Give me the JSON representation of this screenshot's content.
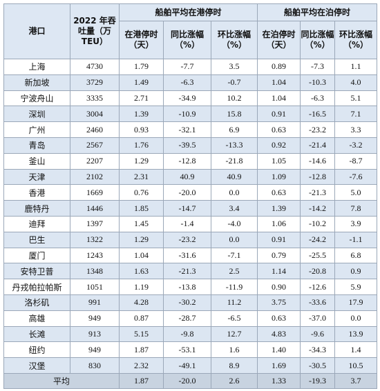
{
  "table": {
    "header": {
      "port": "港口",
      "throughput": "2022 年吞吐量（万 TEU）",
      "groups": [
        "船舶平均在港停时",
        "船舶平均在泊停时"
      ],
      "columns": [
        "在港停时（天）",
        "同比涨幅（%）",
        "环比涨幅（%）",
        "在泊停时（天）",
        "同比涨幅（%）",
        "环比涨幅（%）"
      ]
    },
    "rows": [
      [
        "上海",
        "4730",
        "1.79",
        "-7.7",
        "3.5",
        "0.89",
        "-7.3",
        "1.1"
      ],
      [
        "新加坡",
        "3729",
        "1.49",
        "-6.3",
        "-0.7",
        "1.04",
        "-10.3",
        "4.0"
      ],
      [
        "宁波舟山",
        "3335",
        "2.71",
        "-34.9",
        "10.2",
        "1.04",
        "-6.3",
        "5.1"
      ],
      [
        "深圳",
        "3004",
        "1.39",
        "-10.9",
        "15.8",
        "0.91",
        "-16.5",
        "7.1"
      ],
      [
        "广州",
        "2460",
        "0.93",
        "-32.1",
        "6.9",
        "0.63",
        "-23.2",
        "3.3"
      ],
      [
        "青岛",
        "2567",
        "1.76",
        "-39.5",
        "-13.3",
        "0.92",
        "-21.4",
        "-3.2"
      ],
      [
        "釜山",
        "2207",
        "1.29",
        "-12.8",
        "-21.8",
        "1.05",
        "-14.6",
        "-8.7"
      ],
      [
        "天津",
        "2102",
        "2.31",
        "40.9",
        "40.9",
        "1.09",
        "-12.8",
        "-7.6"
      ],
      [
        "香港",
        "1669",
        "0.76",
        "-20.0",
        "0.0",
        "0.63",
        "-21.3",
        "5.0"
      ],
      [
        "鹿特丹",
        "1446",
        "1.85",
        "-14.7",
        "3.4",
        "1.39",
        "-14.2",
        "7.8"
      ],
      [
        "迪拜",
        "1397",
        "1.45",
        "-1.4",
        "-4.0",
        "1.06",
        "-10.2",
        "3.9"
      ],
      [
        "巴生",
        "1322",
        "1.29",
        "-23.2",
        "0.0",
        "0.91",
        "-24.2",
        "-1.1"
      ],
      [
        "厦门",
        "1243",
        "1.04",
        "-31.6",
        "-7.1",
        "0.79",
        "-25.5",
        "6.8"
      ],
      [
        "安特卫普",
        "1348",
        "1.63",
        "-21.3",
        "2.5",
        "1.14",
        "-20.8",
        "0.9"
      ],
      [
        "丹戎帕拉帕斯",
        "1051",
        "1.19",
        "-13.8",
        "-11.9",
        "0.90",
        "-12.6",
        "5.9"
      ],
      [
        "洛杉矶",
        "991",
        "4.28",
        "-30.2",
        "11.2",
        "3.75",
        "-33.6",
        "17.9"
      ],
      [
        "高雄",
        "949",
        "0.87",
        "-28.7",
        "-6.5",
        "0.63",
        "-37.0",
        "0.0"
      ],
      [
        "长滩",
        "913",
        "5.15",
        "-9.8",
        "12.7",
        "4.83",
        "-9.6",
        "13.9"
      ],
      [
        "纽约",
        "949",
        "1.87",
        "-53.1",
        "1.6",
        "1.40",
        "-34.3",
        "1.4"
      ],
      [
        "汉堡",
        "830",
        "2.32",
        "-49.1",
        "8.9",
        "1.69",
        "-30.5",
        "10.5"
      ]
    ],
    "average": [
      "平均",
      "1.87",
      "-20.0",
      "2.6",
      "1.33",
      "-19.3",
      "3.7"
    ]
  }
}
